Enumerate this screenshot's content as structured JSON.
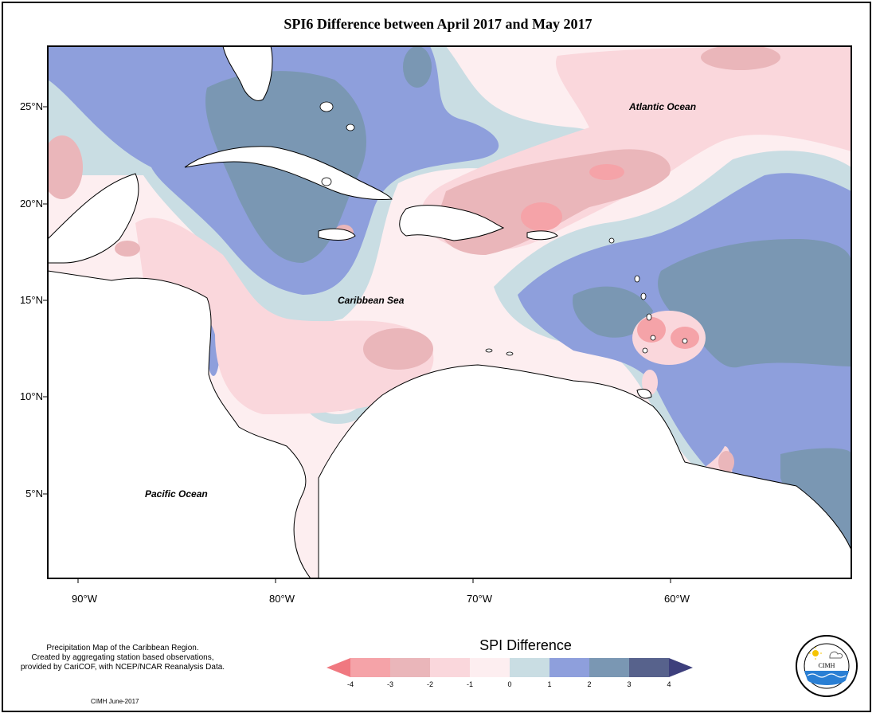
{
  "title": "SPI6 Difference between April 2017 and May 2017",
  "latitude_ticks": [
    "25°N",
    "20°N",
    "15°N",
    "10°N",
    "5°N"
  ],
  "longitude_ticks": [
    "90°W",
    "80°W",
    "70°W",
    "60°W"
  ],
  "place_labels": {
    "atlantic": "Atlantic Ocean",
    "caribbean": "Caribbean Sea",
    "pacific": "Pacific Ocean"
  },
  "description": "Precipitation Map of the Caribbean Region.\nCreated by aggregating station based observations,\nprovided by CariCOF, with NCEP/NCAR Reanalysis Data.",
  "credit": "CIMH June-2017",
  "legend": {
    "title": "SPI Difference",
    "ticks": [
      "-4",
      "-3",
      "-2",
      "-1",
      "0",
      "1",
      "2",
      "3",
      "4"
    ],
    "colors": [
      "#f07880",
      "#f5a3a8",
      "#eab6ba",
      "#fad7dc",
      "#fdeef0",
      "#c9dde3",
      "#8e9fdc",
      "#7a97b3",
      "#57628c",
      "#3d3f7c"
    ]
  },
  "logo": {
    "name": "CIMH",
    "ring_text": "Caribbean Institute for Meteorology and Hydrology"
  }
}
